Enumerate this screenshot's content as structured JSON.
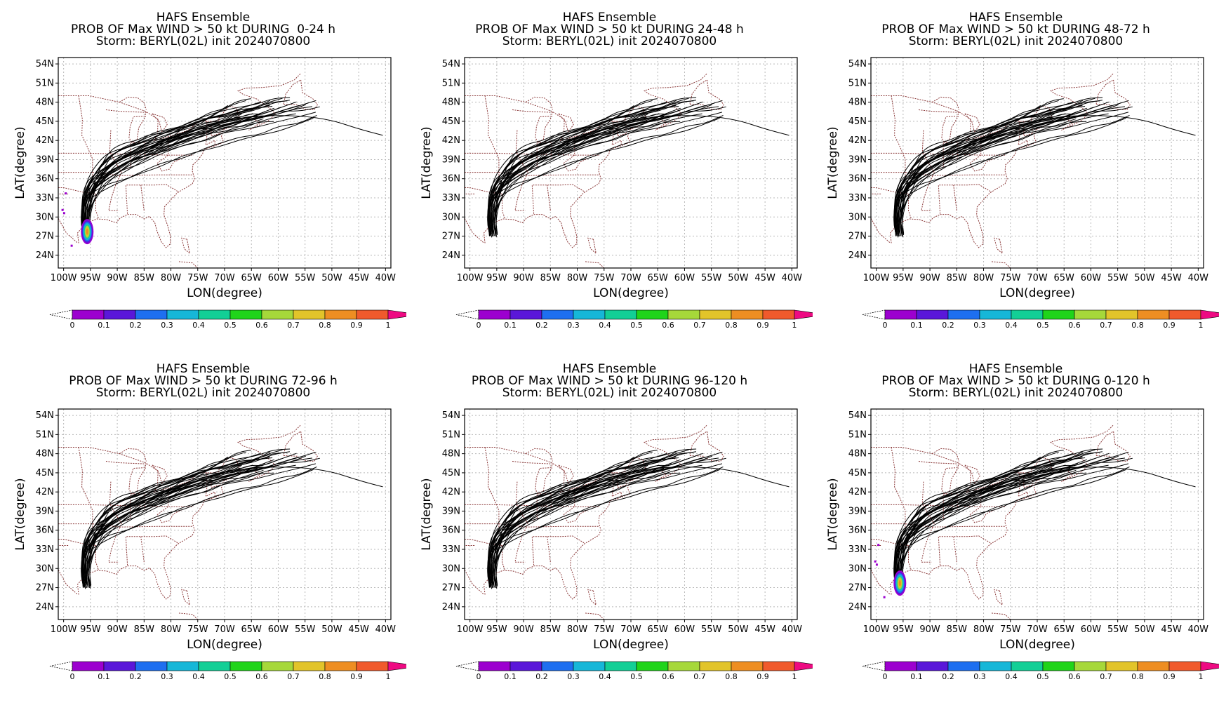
{
  "colors": {
    "track": "#000000",
    "border": "#8b3a3a",
    "grid": "#b8b8b8",
    "prob_scale": [
      "#9c00cf",
      "#5a17d9",
      "#1e6ff0",
      "#16b7d8",
      "#12cf96",
      "#20d41a",
      "#a6d83a",
      "#e2c42a",
      "#ee8e22",
      "#f05a2c",
      "#ee0a82"
    ]
  },
  "shared": {
    "model_title": "HAFS Ensemble",
    "storm_line": "Storm: BERYL(02L) init 2024070800",
    "xlabel": "LON(degree)",
    "ylabel": "LAT(degree)",
    "lon_ticks": [
      "100W",
      "95W",
      "90W",
      "85W",
      "80W",
      "75W",
      "70W",
      "65W",
      "60W",
      "55W",
      "50W",
      "45W",
      "40W"
    ],
    "lat_ticks": [
      "54N",
      "51N",
      "48N",
      "45N",
      "42N",
      "39N",
      "36N",
      "33N",
      "30N",
      "27N",
      "24N"
    ],
    "colorbar_labels": [
      "0",
      "0.1",
      "0.2",
      "0.3",
      "0.4",
      "0.5",
      "0.6",
      "0.7",
      "0.8",
      "0.9",
      "1"
    ]
  },
  "chart_data": [
    {
      "type": "heatmap",
      "title": "HAFS Ensemble",
      "subtitle": "PROB OF Max WIND > 50 kt DURING  0-24 h",
      "storm": "Storm: BERYL(02L) init 2024070800",
      "xlabel": "LON(degree)",
      "ylabel": "LAT(degree)",
      "xlim": [
        -101,
        -39
      ],
      "ylim": [
        22,
        55
      ],
      "grid": true,
      "prob_blob": true
    },
    {
      "type": "heatmap",
      "title": "HAFS Ensemble",
      "subtitle": "PROB OF Max WIND > 50 kt DURING 24-48 h",
      "storm": "Storm: BERYL(02L) init 2024070800",
      "xlabel": "LON(degree)",
      "ylabel": "LAT(degree)",
      "xlim": [
        -101,
        -39
      ],
      "ylim": [
        22,
        55
      ],
      "grid": true,
      "prob_blob": false
    },
    {
      "type": "heatmap",
      "title": "HAFS Ensemble",
      "subtitle": "PROB OF Max WIND > 50 kt DURING 48-72 h",
      "storm": "Storm: BERYL(02L) init 2024070800",
      "xlabel": "LON(degree)",
      "ylabel": "LAT(degree)",
      "xlim": [
        -101,
        -39
      ],
      "ylim": [
        22,
        55
      ],
      "grid": true,
      "prob_blob": false
    },
    {
      "type": "heatmap",
      "title": "HAFS Ensemble",
      "subtitle": "PROB OF Max WIND > 50 kt DURING 72-96 h",
      "storm": "Storm: BERYL(02L) init 2024070800",
      "xlabel": "LON(degree)",
      "ylabel": "LAT(degree)",
      "xlim": [
        -101,
        -39
      ],
      "ylim": [
        22,
        55
      ],
      "grid": true,
      "prob_blob": false
    },
    {
      "type": "heatmap",
      "title": "HAFS Ensemble",
      "subtitle": "PROB OF Max WIND > 50 kt DURING 96-120 h",
      "storm": "Storm: BERYL(02L) init 2024070800",
      "xlabel": "LON(degree)",
      "ylabel": "LAT(degree)",
      "xlim": [
        -101,
        -39
      ],
      "ylim": [
        22,
        55
      ],
      "grid": true,
      "prob_blob": false
    },
    {
      "type": "heatmap",
      "title": "HAFS Ensemble",
      "subtitle": "PROB OF Max WIND > 50 kt DURING 0-120 h",
      "storm": "Storm: BERYL(02L) init 2024070800",
      "xlabel": "LON(degree)",
      "ylabel": "LAT(degree)",
      "xlim": [
        -101,
        -39
      ],
      "ylim": [
        22,
        55
      ],
      "grid": true,
      "prob_blob": true
    }
  ]
}
